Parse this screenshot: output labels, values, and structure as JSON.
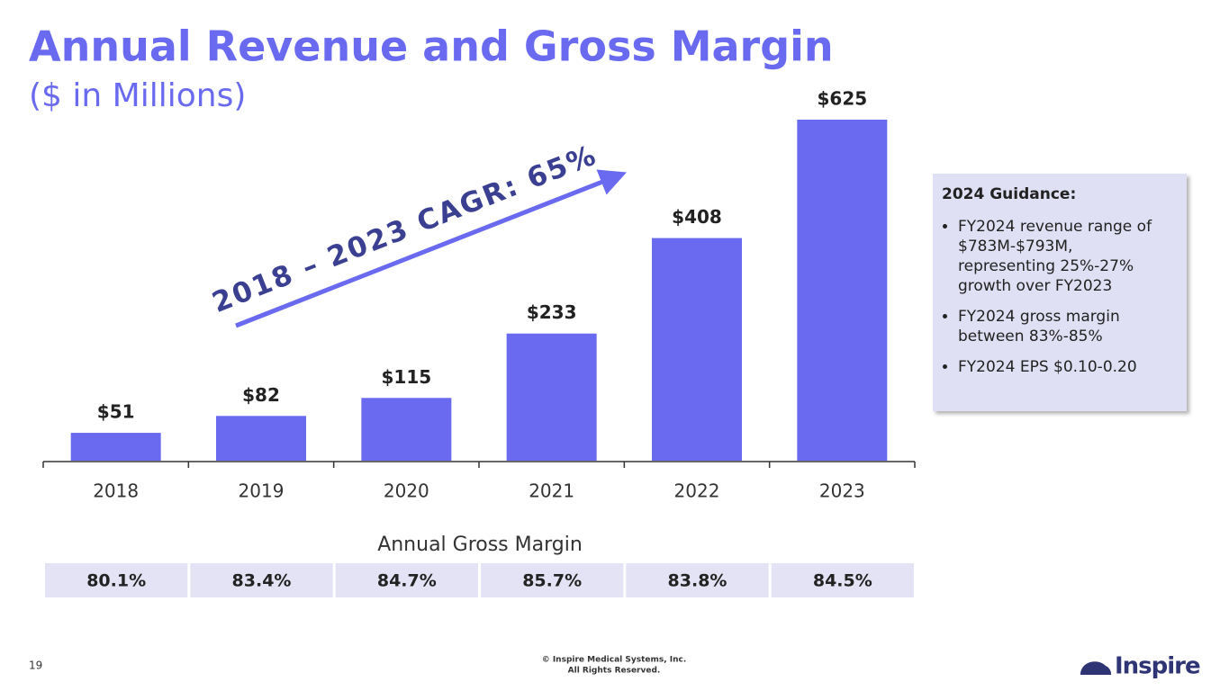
{
  "chart_data": {
    "type": "bar",
    "title": "Annual Revenue and Gross Margin",
    "subtitle": "($ in Millions)",
    "categories": [
      "2018",
      "2019",
      "2020",
      "2021",
      "2022",
      "2023"
    ],
    "values": [
      51,
      82,
      115,
      233,
      408,
      625
    ],
    "value_labels": [
      "$51",
      "$82",
      "$115",
      "$233",
      "$408",
      "$625"
    ],
    "color": "#6a6af0",
    "annotation": "2018 – 2023 CAGR: 65%"
  },
  "gross_margin_table": {
    "title": "Annual Gross Margin",
    "cells": [
      "80.1%",
      "83.4%",
      "84.7%",
      "85.7%",
      "83.8%",
      "84.5%"
    ]
  },
  "guidance": {
    "title": "2024 Guidance:",
    "bullets": [
      "FY2024 revenue range of $783M-$793M, representing 25%-27% growth over FY2023",
      "FY2024 gross margin between 83%-85%",
      "FY2024 EPS $0.10-0.20"
    ]
  },
  "footer": {
    "page_number": "19",
    "copyright": [
      "© Inspire Medical Systems, Inc.",
      "All Rights Reserved."
    ],
    "logo": "Inspire"
  }
}
